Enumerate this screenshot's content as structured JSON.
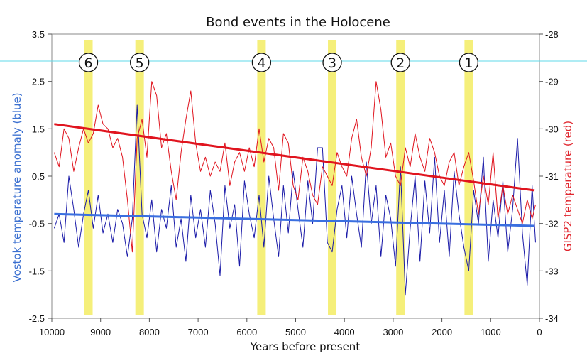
{
  "chart_data": {
    "type": "line",
    "title": "Bond events in the Holocene",
    "xlabel": "Years before present",
    "ylabel_left": "Vostok temperature anomaly (blue)",
    "ylabel_right": "GISP2 temperature (red)",
    "xlim": [
      10000,
      0
    ],
    "ylim_left": [
      -2.5,
      3.5
    ],
    "ylim_right": [
      -34,
      -28
    ],
    "x_ticks": [
      "10000",
      "9000",
      "8000",
      "7000",
      "6000",
      "5000",
      "4000",
      "3000",
      "2000",
      "1000",
      "0"
    ],
    "y_left_ticks": [
      "3.5",
      "2.5",
      "1.5",
      "0.5",
      "-0.5",
      "-1.5",
      "-2.5"
    ],
    "y_right_ticks": [
      "-28",
      "-29",
      "-30",
      "-31",
      "-32",
      "-33",
      "-34"
    ],
    "bond_events": [
      {
        "label": "6",
        "year": 9250
      },
      {
        "label": "5",
        "year": 8200
      },
      {
        "label": "4",
        "year": 5700
      },
      {
        "label": "3",
        "year": 4250
      },
      {
        "label": "2",
        "year": 2850
      },
      {
        "label": "1",
        "year": 1450
      }
    ],
    "series": [
      {
        "name": "Vostok temperature anomaly",
        "axis": "left",
        "color": "#1a1aa8",
        "x": [
          9950,
          9850,
          9750,
          9650,
          9550,
          9450,
          9350,
          9250,
          9150,
          9050,
          8950,
          8850,
          8750,
          8650,
          8550,
          8450,
          8350,
          8250,
          8150,
          8050,
          7950,
          7850,
          7750,
          7650,
          7550,
          7450,
          7350,
          7250,
          7150,
          7050,
          6950,
          6850,
          6750,
          6650,
          6550,
          6450,
          6350,
          6250,
          6150,
          6050,
          5950,
          5850,
          5750,
          5650,
          5550,
          5450,
          5350,
          5250,
          5150,
          5050,
          4950,
          4850,
          4750,
          4650,
          4550,
          4450,
          4350,
          4250,
          4150,
          4050,
          3950,
          3850,
          3750,
          3650,
          3550,
          3450,
          3350,
          3250,
          3150,
          3050,
          2950,
          2850,
          2750,
          2650,
          2550,
          2450,
          2350,
          2250,
          2150,
          2050,
          1950,
          1850,
          1750,
          1650,
          1550,
          1450,
          1350,
          1250,
          1150,
          1050,
          950,
          850,
          750,
          650,
          550,
          450,
          350,
          250,
          150,
          80
        ],
        "values": [
          -0.6,
          -0.3,
          -0.9,
          0.5,
          -0.2,
          -1.0,
          -0.3,
          0.2,
          -0.6,
          0.1,
          -0.7,
          -0.3,
          -0.9,
          -0.2,
          -0.5,
          -1.2,
          -0.4,
          2.0,
          -0.3,
          -0.8,
          0.0,
          -1.1,
          -0.2,
          -0.6,
          0.3,
          -1.0,
          -0.4,
          -1.3,
          0.1,
          -0.8,
          -0.2,
          -1.0,
          0.2,
          -0.5,
          -1.6,
          0.3,
          -0.6,
          -0.1,
          -1.4,
          0.4,
          -0.3,
          -0.8,
          0.1,
          -1.0,
          0.5,
          -0.4,
          -1.2,
          0.3,
          -0.7,
          0.6,
          -0.2,
          -1.0,
          0.4,
          -0.5,
          1.1,
          1.1,
          -0.9,
          -1.1,
          -0.2,
          0.3,
          -0.8,
          0.5,
          -0.3,
          -1.0,
          0.8,
          -0.5,
          0.3,
          -1.2,
          0.1,
          -0.4,
          -1.4,
          0.7,
          -2.0,
          -0.6,
          0.5,
          -1.3,
          0.4,
          -0.7,
          0.9,
          -0.9,
          0.2,
          -1.2,
          0.6,
          -0.3,
          -1.0,
          -1.5,
          0.2,
          -0.5,
          0.9,
          -1.3,
          0.0,
          -0.8,
          0.4,
          -1.1,
          -0.2,
          1.3,
          -0.7,
          -1.8,
          0.3,
          -0.9
        ]
      },
      {
        "name": "GISP2 temperature",
        "axis": "right",
        "color": "#e0141e",
        "x": [
          9950,
          9850,
          9750,
          9650,
          9550,
          9450,
          9350,
          9250,
          9150,
          9050,
          8950,
          8850,
          8750,
          8650,
          8550,
          8450,
          8350,
          8250,
          8150,
          8050,
          7950,
          7850,
          7750,
          7650,
          7550,
          7450,
          7350,
          7250,
          7150,
          7050,
          6950,
          6850,
          6750,
          6650,
          6550,
          6450,
          6350,
          6250,
          6150,
          6050,
          5950,
          5850,
          5750,
          5650,
          5550,
          5450,
          5350,
          5250,
          5150,
          5050,
          4950,
          4850,
          4750,
          4650,
          4550,
          4450,
          4350,
          4250,
          4150,
          4050,
          3950,
          3850,
          3750,
          3650,
          3550,
          3450,
          3350,
          3250,
          3150,
          3050,
          2950,
          2850,
          2750,
          2650,
          2550,
          2450,
          2350,
          2250,
          2150,
          2050,
          1950,
          1850,
          1750,
          1650,
          1550,
          1450,
          1350,
          1250,
          1150,
          1050,
          950,
          850,
          750,
          650,
          550,
          450,
          350,
          250,
          150,
          80
        ],
        "values": [
          -30.5,
          -30.8,
          -30.0,
          -30.2,
          -30.9,
          -30.4,
          -30.0,
          -30.3,
          -30.1,
          -29.5,
          -29.9,
          -30.0,
          -30.4,
          -30.2,
          -30.6,
          -31.5,
          -32.6,
          -30.2,
          -29.8,
          -30.6,
          -29.0,
          -29.3,
          -30.4,
          -30.1,
          -30.9,
          -31.5,
          -30.5,
          -29.8,
          -29.2,
          -30.3,
          -30.9,
          -30.6,
          -31.0,
          -30.7,
          -30.9,
          -30.3,
          -31.2,
          -30.7,
          -30.5,
          -30.9,
          -30.4,
          -30.8,
          -30.0,
          -30.7,
          -30.2,
          -30.4,
          -31.3,
          -30.1,
          -30.3,
          -31.2,
          -31.5,
          -30.6,
          -30.9,
          -31.4,
          -31.6,
          -30.8,
          -31.0,
          -31.2,
          -30.5,
          -30.8,
          -31.0,
          -30.2,
          -29.8,
          -30.6,
          -31.0,
          -30.4,
          -29.0,
          -29.6,
          -30.6,
          -30.3,
          -31.0,
          -31.2,
          -30.4,
          -30.8,
          -30.1,
          -30.6,
          -30.9,
          -30.2,
          -30.5,
          -31.0,
          -31.2,
          -30.7,
          -30.5,
          -31.2,
          -30.8,
          -30.5,
          -31.1,
          -31.8,
          -31.0,
          -31.6,
          -30.5,
          -31.9,
          -31.2,
          -31.8,
          -31.4,
          -31.7,
          -32.0,
          -31.5,
          -31.9,
          -31.6
        ]
      },
      {
        "name": "Vostok trend",
        "axis": "left",
        "color": "#3a6fe0",
        "x": [
          9950,
          100
        ],
        "values": [
          -0.3,
          -0.55
        ]
      },
      {
        "name": "GISP2 trend",
        "axis": "right",
        "color": "#e0141e",
        "x": [
          9950,
          100
        ],
        "values": [
          -29.9,
          -31.3
        ]
      }
    ]
  },
  "colors": {
    "bond_band": "#f5ef7a",
    "reference_line": "#5fd8e8",
    "frame": "#8a8a8a"
  },
  "reference_line_value": -28.57
}
